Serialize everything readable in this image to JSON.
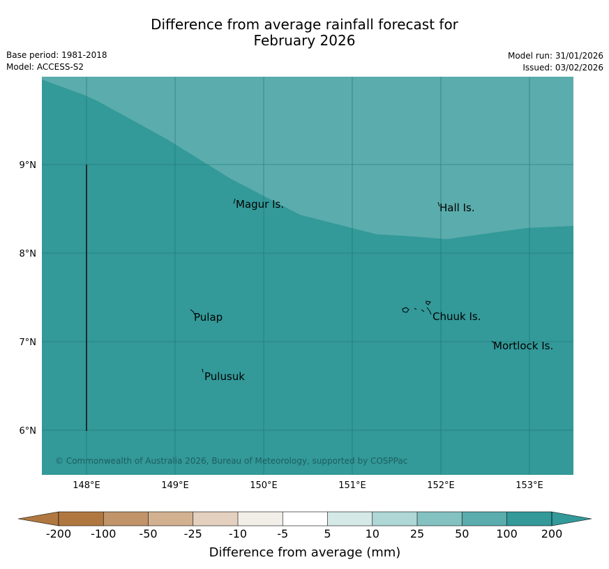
{
  "title": {
    "line1": "Difference from average rainfall forecast for",
    "line2": "February 2026"
  },
  "meta": {
    "base_period": "Base period: 1981-2018",
    "model": "Model: ACCESS-S2",
    "model_run": "Model run: 31/01/2026",
    "issued": "Issued: 03/02/2026"
  },
  "map": {
    "lon_labels": [
      "148°E",
      "149°E",
      "150°E",
      "151°E",
      "152°E",
      "153°E"
    ],
    "lat_labels": [
      "9°N",
      "8°N",
      "7°N",
      "6°N"
    ],
    "places": [
      "Magur Is.",
      "Hall Is.",
      "Pulap",
      "Chuuk Is.",
      "Mortlock Is.",
      "Pulusuk"
    ],
    "copyright": "© Commonwealth of Australia 2026, Bureau of Meteorology, supported by COSPPac",
    "regions": [
      {
        "category": "50 to 100",
        "color": "#5bacac"
      },
      {
        "category": "100 to 200",
        "color": "#339999"
      }
    ]
  },
  "legend": {
    "ticks": [
      "-200",
      "-100",
      "-50",
      "-25",
      "-10",
      "-5",
      "5",
      "10",
      "25",
      "50",
      "100",
      "200"
    ],
    "colors": [
      "#b07840",
      "#b07840",
      "#c19469",
      "#d2b191",
      "#e3d0be",
      "#f2efe9",
      "#ffffff",
      "#d5e9e7",
      "#aed7d6",
      "#84c2c1",
      "#5bacac",
      "#339999",
      "#339999"
    ],
    "label": "Difference from average (mm)"
  }
}
